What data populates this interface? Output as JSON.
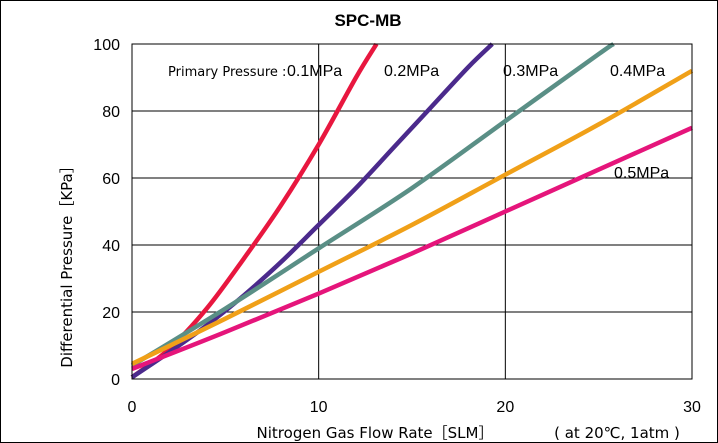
{
  "chart_data": {
    "type": "line",
    "title": "SPC-MB",
    "xlabel": "Nitrogen Gas Flow Rate［SLM］",
    "ylabel": "Differential Pressure［KPa］",
    "condition_note": "( at 20℃,  1atm )",
    "primary_pressure_label": "Primary Pressure :",
    "xlim": [
      0,
      30
    ],
    "ylim": [
      0,
      100
    ],
    "xticks": [
      "0",
      "10",
      "20",
      "30"
    ],
    "yticks": [
      "0",
      "20",
      "40",
      "60",
      "80",
      "100"
    ],
    "grid": true,
    "series": [
      {
        "name": "0.1MPa",
        "color": "#e8173f",
        "x": [
          0,
          2,
          4,
          6,
          8,
          10,
          12,
          13.1
        ],
        "y": [
          0.5,
          9,
          21,
          36,
          52,
          70,
          90,
          100
        ]
      },
      {
        "name": "0.2MPa",
        "color": "#4b2a8c",
        "x": [
          0,
          2,
          4,
          6,
          8,
          10,
          12,
          14,
          16,
          18,
          19.3
        ],
        "y": [
          0.5,
          8,
          16,
          25,
          35,
          46,
          57,
          69,
          81,
          93,
          100
        ]
      },
      {
        "name": "0.3MPa",
        "color": "#5a8f86",
        "x": [
          0,
          5,
          10,
          15,
          20,
          25,
          25.8
        ],
        "y": [
          4,
          21,
          39,
          57,
          77,
          97,
          100
        ]
      },
      {
        "name": "0.4MPa",
        "color": "#f0a018",
        "x": [
          0,
          5,
          10,
          15,
          20,
          25,
          30
        ],
        "y": [
          4.5,
          18,
          32,
          46,
          61,
          76,
          92
        ]
      },
      {
        "name": "0.5MPa",
        "color": "#e5157b",
        "x": [
          0,
          5,
          10,
          15,
          20,
          25,
          30
        ],
        "y": [
          3,
          14,
          25.5,
          37.5,
          50,
          62.5,
          75
        ]
      }
    ]
  }
}
